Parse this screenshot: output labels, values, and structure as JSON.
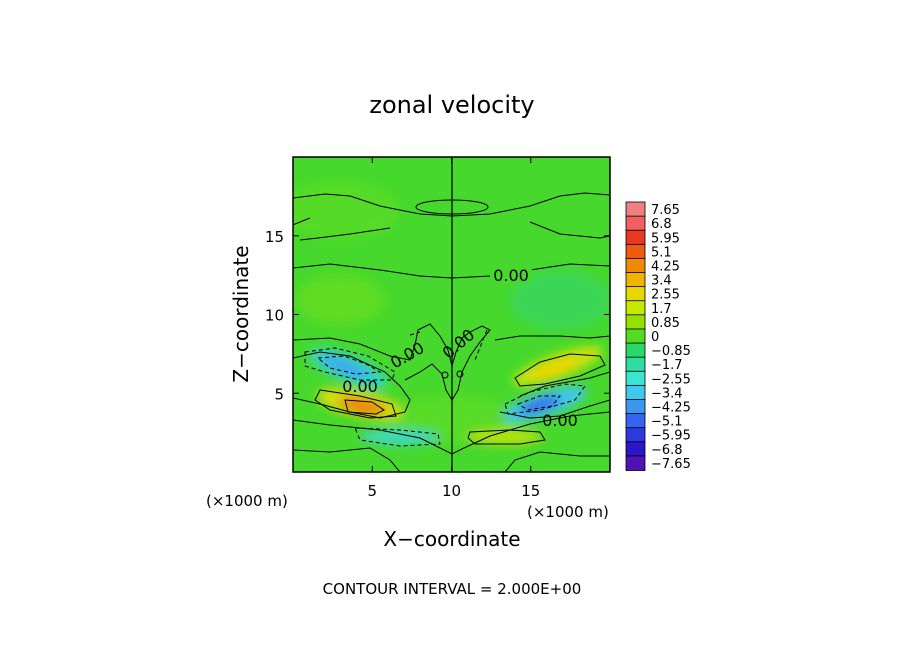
{
  "chart_data": {
    "type": "contour",
    "title": "zonal velocity",
    "xlabel": "X−coordinate",
    "ylabel": "Z−coordinate",
    "x_unit": "(×1000 m)",
    "y_unit": "(×1000 m)",
    "xlim": [
      0,
      20
    ],
    "ylim": [
      0,
      20
    ],
    "x_ticks": [
      5,
      10,
      15
    ],
    "y_ticks": [
      5,
      10,
      15
    ],
    "footer": "CONTOUR INTERVAL = 2.000E+00",
    "contour_labels": [
      "0.00",
      "0.00",
      "0.00",
      "0.00",
      "0.00"
    ],
    "colorbar": {
      "levels": [
        "7.65",
        "6.8",
        "5.95",
        "5.1",
        "4.25",
        "3.4",
        "2.55",
        "1.7",
        "0.85",
        "0",
        "−0.85",
        "−1.7",
        "−2.55",
        "−3.4",
        "−4.25",
        "−5.1",
        "−5.95",
        "−6.8",
        "−7.65"
      ],
      "colors": [
        "#f08080",
        "#f06060",
        "#e83a20",
        "#ee5a10",
        "#f08a00",
        "#f0b400",
        "#e6d800",
        "#c8e800",
        "#96e000",
        "#52dc20",
        "#2ad86a",
        "#30dca0",
        "#3ce4d2",
        "#40c8f0",
        "#3c96f0",
        "#3464f0",
        "#2e38e0",
        "#2818c8",
        "#5012b4"
      ]
    }
  }
}
